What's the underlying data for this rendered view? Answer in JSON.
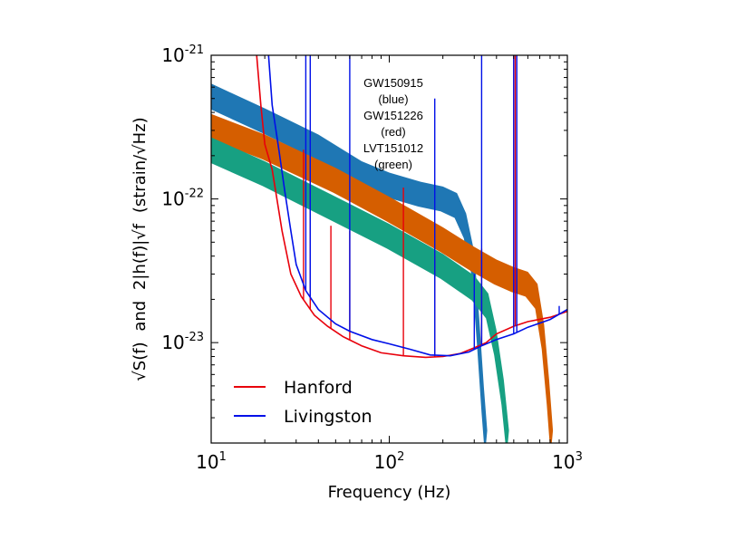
{
  "chart_data": {
    "type": "line",
    "xlabel": "Frequency (Hz)",
    "ylabel_parts": [
      "√S(f)",
      "and",
      "2|h(f)|√f",
      "(strain/√Hz)"
    ],
    "x_scale": "log",
    "y_scale": "log",
    "xlim": [
      10,
      1000
    ],
    "ylim": [
      2e-24,
      1e-21
    ],
    "x_ticks": [
      {
        "value": 10,
        "base": "10",
        "exp": "1"
      },
      {
        "value": 100,
        "base": "10",
        "exp": "2"
      },
      {
        "value": 1000,
        "base": "10",
        "exp": "3"
      }
    ],
    "y_ticks": [
      {
        "value": 1e-23,
        "base": "10",
        "exp": "-23"
      },
      {
        "value": 1e-22,
        "base": "10",
        "exp": "-22"
      },
      {
        "value": 1e-21,
        "base": "10",
        "exp": "-21"
      }
    ],
    "annotation": [
      "GW150915",
      "(blue)",
      "GW151226",
      "(red)",
      "LVT151012",
      "(green)"
    ],
    "legend": {
      "position": "lower-left",
      "entries": [
        {
          "label": "Hanford",
          "color": "#e8000b"
        },
        {
          "label": "Livingston",
          "color": "#0010e8"
        }
      ]
    },
    "bands": [
      {
        "color": "#1f77b4",
        "center": [
          [
            10,
            5.2e-22
          ],
          [
            20,
            3.5e-22
          ],
          [
            40,
            2.3e-22
          ],
          [
            70,
            1.5e-22
          ],
          [
            100,
            1.25e-22
          ],
          [
            150,
            1.08e-22
          ],
          [
            200,
            1e-22
          ],
          [
            240,
            9e-23
          ],
          [
            270,
            6.5e-23
          ],
          [
            300,
            3.5e-23
          ],
          [
            320,
            1.2e-23
          ],
          [
            340,
            4e-24
          ],
          [
            355,
            2e-24
          ]
        ],
        "width_factor": 1.22
      },
      {
        "color": "#d55e00",
        "center": [
          [
            10,
            3.2e-22
          ],
          [
            20,
            2.3e-22
          ],
          [
            50,
            1.35e-22
          ],
          [
            100,
            8.5e-23
          ],
          [
            200,
            5.2e-23
          ],
          [
            300,
            3.8e-23
          ],
          [
            400,
            3.1e-23
          ],
          [
            500,
            2.75e-23
          ],
          [
            600,
            2.55e-23
          ],
          [
            680,
            2.1e-23
          ],
          [
            740,
            1.1e-23
          ],
          [
            790,
            4.5e-24
          ],
          [
            830,
            2e-24
          ]
        ],
        "width_factor": 1.22
      },
      {
        "color": "#17a082",
        "center": [
          [
            10,
            2.2e-22
          ],
          [
            20,
            1.5e-22
          ],
          [
            50,
            8.5e-23
          ],
          [
            100,
            5.5e-23
          ],
          [
            200,
            3.4e-23
          ],
          [
            300,
            2.4e-23
          ],
          [
            360,
            1.8e-23
          ],
          [
            400,
            1e-23
          ],
          [
            440,
            4.5e-24
          ],
          [
            470,
            2e-24
          ]
        ],
        "width_factor": 1.22
      }
    ],
    "series": [
      {
        "name": "Hanford",
        "color": "#e8000b",
        "points": [
          [
            18,
            1e-21
          ],
          [
            19,
            4.5e-22
          ],
          [
            20,
            2.4e-22
          ],
          [
            22,
            1.6e-22
          ],
          [
            25,
            6e-23
          ],
          [
            28,
            3e-23
          ],
          [
            32,
            2.1e-23
          ],
          [
            38,
            1.55e-23
          ],
          [
            45,
            1.3e-23
          ],
          [
            55,
            1.1e-23
          ],
          [
            70,
            9.5e-24
          ],
          [
            90,
            8.5e-24
          ],
          [
            120,
            8.1e-24
          ],
          [
            160,
            7.9e-24
          ],
          [
            200,
            8e-24
          ],
          [
            250,
            8.4e-24
          ],
          [
            300,
            9.2e-24
          ],
          [
            350,
            1e-23
          ],
          [
            400,
            1.15e-23
          ],
          [
            500,
            1.3e-23
          ],
          [
            600,
            1.4e-23
          ],
          [
            800,
            1.5e-23
          ],
          [
            1000,
            1.65e-23
          ]
        ],
        "spikes": [
          [
            33,
            2.2e-22
          ],
          [
            36,
            1.4e-22
          ],
          [
            47,
            6.5e-23
          ],
          [
            60,
            6e-23
          ],
          [
            120,
            1.2e-22
          ],
          [
            180,
            4e-23
          ],
          [
            330,
            4.5e-23
          ],
          [
            500,
            1e-21
          ],
          [
            510,
            1e-21
          ]
        ]
      },
      {
        "name": "Livingston",
        "color": "#0010e8",
        "points": [
          [
            21,
            1e-21
          ],
          [
            22,
            4.5e-22
          ],
          [
            24,
            2.2e-22
          ],
          [
            26,
            1.1e-22
          ],
          [
            28,
            6e-23
          ],
          [
            30,
            3.5e-23
          ],
          [
            34,
            2.3e-23
          ],
          [
            40,
            1.7e-23
          ],
          [
            50,
            1.35e-23
          ],
          [
            60,
            1.2e-23
          ],
          [
            80,
            1.05e-23
          ],
          [
            100,
            9.8e-24
          ],
          [
            130,
            9e-24
          ],
          [
            170,
            8.2e-24
          ],
          [
            220,
            8.1e-24
          ],
          [
            280,
            8.6e-24
          ],
          [
            330,
            9.5e-24
          ],
          [
            400,
            1.05e-23
          ],
          [
            500,
            1.15e-23
          ],
          [
            600,
            1.28e-23
          ],
          [
            800,
            1.45e-23
          ],
          [
            1000,
            1.7e-23
          ]
        ],
        "spikes": [
          [
            34,
            1e-21
          ],
          [
            36,
            1e-21
          ],
          [
            60,
            1e-21
          ],
          [
            180,
            5e-22
          ],
          [
            300,
            3e-23
          ],
          [
            330,
            1e-21
          ],
          [
            500,
            1e-21
          ],
          [
            520,
            1e-21
          ],
          [
            900,
            1.8e-23
          ]
        ]
      }
    ]
  }
}
